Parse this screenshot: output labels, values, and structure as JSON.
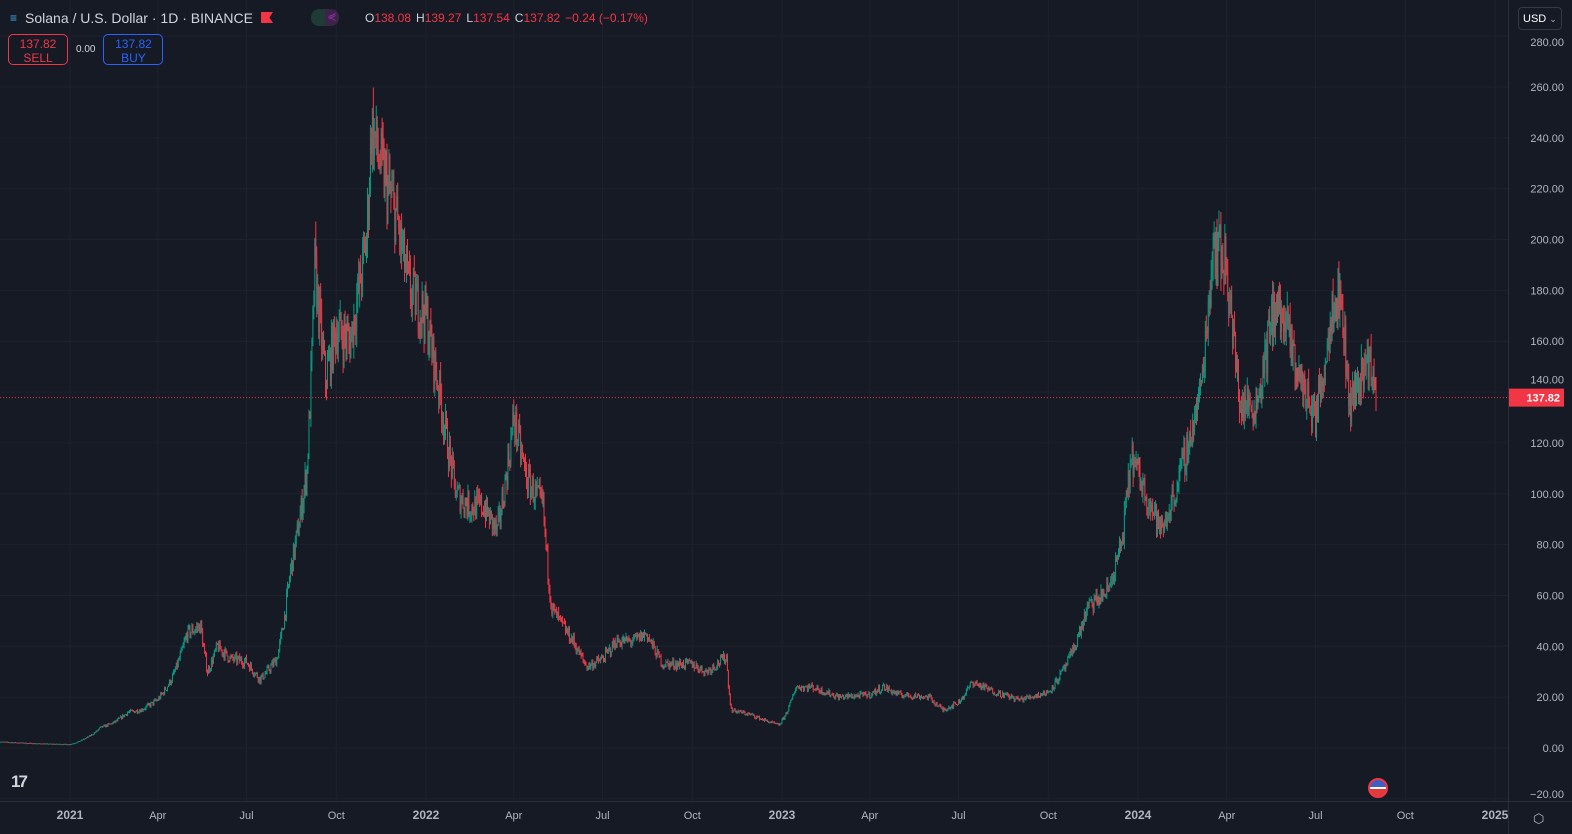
{
  "header": {
    "symbol": "Solana / U.S. Dollar · 1D · BINANCE",
    "o_label": "O",
    "o": "138.08",
    "h_label": "H",
    "h": "139.27",
    "l_label": "L",
    "l": "137.54",
    "c_label": "C",
    "c": "137.82",
    "change": "−0.24 (−0.17%)"
  },
  "trade": {
    "sell_price": "137.82",
    "sell_label": "SELL",
    "spread": "0.00",
    "buy_price": "137.82",
    "buy_label": "BUY"
  },
  "currency": "USD",
  "colors": {
    "up": "#089981",
    "down": "#f23645",
    "bg": "#161a25",
    "grid": "#1e222d",
    "text": "#b2b5be"
  },
  "chart_data": {
    "type": "candlestick",
    "title": "Solana / U.S. Dollar · 1D · BINANCE",
    "last_price": 137.82,
    "last_price_label": "137.82",
    "ylim": [
      -20,
      280
    ],
    "yticks": [
      "280.00",
      "260.00",
      "240.00",
      "220.00",
      "200.00",
      "180.00",
      "160.00",
      "140.00",
      "120.00",
      "100.00",
      "80.00",
      "60.00",
      "40.00",
      "20.00",
      "0.00",
      "−20.00"
    ],
    "ytick_values": [
      280,
      260,
      240,
      220,
      200,
      180,
      160,
      140,
      120,
      100,
      80,
      60,
      40,
      20,
      0,
      -20
    ],
    "xticks": [
      {
        "label": "2021",
        "date": "2021-01-01"
      },
      {
        "label": "Apr",
        "date": "2021-04-01"
      },
      {
        "label": "Jul",
        "date": "2021-07-01"
      },
      {
        "label": "Oct",
        "date": "2021-10-01"
      },
      {
        "label": "2022",
        "date": "2022-01-01"
      },
      {
        "label": "Apr",
        "date": "2022-04-01"
      },
      {
        "label": "Jul",
        "date": "2022-07-01"
      },
      {
        "label": "Oct",
        "date": "2022-10-01"
      },
      {
        "label": "2023",
        "date": "2023-01-01"
      },
      {
        "label": "Apr",
        "date": "2023-04-01"
      },
      {
        "label": "Jul",
        "date": "2023-07-01"
      },
      {
        "label": "Oct",
        "date": "2023-10-01"
      },
      {
        "label": "2024",
        "date": "2024-01-01"
      },
      {
        "label": "Apr",
        "date": "2024-04-01"
      },
      {
        "label": "Jul",
        "date": "2024-07-01"
      },
      {
        "label": "Oct",
        "date": "2024-10-01"
      },
      {
        "label": "2025",
        "date": "2025-01-01"
      }
    ],
    "xrange": [
      "2020-10-20",
      "2025-01-20"
    ],
    "close_keypoints": [
      [
        "2020-10-20",
        2.5
      ],
      [
        "2020-11-15",
        2
      ],
      [
        "2020-12-15",
        1.6
      ],
      [
        "2021-01-01",
        1.5
      ],
      [
        "2021-01-15",
        3.5
      ],
      [
        "2021-02-01",
        8
      ],
      [
        "2021-02-15",
        10
      ],
      [
        "2021-03-01",
        14
      ],
      [
        "2021-03-15",
        15
      ],
      [
        "2021-04-01",
        19
      ],
      [
        "2021-04-15",
        27
      ],
      [
        "2021-05-01",
        45
      ],
      [
        "2021-05-15",
        48
      ],
      [
        "2021-05-22",
        30
      ],
      [
        "2021-06-01",
        40
      ],
      [
        "2021-06-15",
        35
      ],
      [
        "2021-07-01",
        34
      ],
      [
        "2021-07-15",
        27
      ],
      [
        "2021-08-01",
        35
      ],
      [
        "2021-08-15",
        70
      ],
      [
        "2021-09-01",
        110
      ],
      [
        "2021-09-09",
        190
      ],
      [
        "2021-09-20",
        145
      ],
      [
        "2021-10-01",
        165
      ],
      [
        "2021-10-15",
        160
      ],
      [
        "2021-11-01",
        200
      ],
      [
        "2021-11-06",
        245
      ],
      [
        "2021-11-15",
        230
      ],
      [
        "2021-12-01",
        210
      ],
      [
        "2021-12-15",
        180
      ],
      [
        "2022-01-01",
        170
      ],
      [
        "2022-01-15",
        140
      ],
      [
        "2022-02-01",
        100
      ],
      [
        "2022-02-15",
        95
      ],
      [
        "2022-03-01",
        95
      ],
      [
        "2022-03-15",
        85
      ],
      [
        "2022-04-01",
        130
      ],
      [
        "2022-04-15",
        105
      ],
      [
        "2022-05-01",
        95
      ],
      [
        "2022-05-10",
        55
      ],
      [
        "2022-06-01",
        42
      ],
      [
        "2022-06-15",
        32
      ],
      [
        "2022-07-01",
        35
      ],
      [
        "2022-07-15",
        42
      ],
      [
        "2022-08-01",
        42
      ],
      [
        "2022-08-15",
        45
      ],
      [
        "2022-09-01",
        33
      ],
      [
        "2022-10-01",
        33
      ],
      [
        "2022-10-15",
        30
      ],
      [
        "2022-11-05",
        36
      ],
      [
        "2022-11-10",
        15
      ],
      [
        "2022-12-01",
        13
      ],
      [
        "2022-12-29",
        9
      ],
      [
        "2023-01-15",
        24
      ],
      [
        "2023-02-01",
        24
      ],
      [
        "2023-03-01",
        20
      ],
      [
        "2023-04-01",
        21
      ],
      [
        "2023-04-15",
        24
      ],
      [
        "2023-05-01",
        21
      ],
      [
        "2023-06-01",
        20
      ],
      [
        "2023-06-15",
        15
      ],
      [
        "2023-07-01",
        18
      ],
      [
        "2023-07-15",
        26
      ],
      [
        "2023-08-01",
        23
      ],
      [
        "2023-09-01",
        19
      ],
      [
        "2023-10-01",
        22
      ],
      [
        "2023-10-20",
        33
      ],
      [
        "2023-11-10",
        55
      ],
      [
        "2023-12-01",
        62
      ],
      [
        "2023-12-15",
        80
      ],
      [
        "2023-12-25",
        115
      ],
      [
        "2024-01-15",
        95
      ],
      [
        "2024-01-25",
        85
      ],
      [
        "2024-02-15",
        110
      ],
      [
        "2024-03-05",
        140
      ],
      [
        "2024-03-18",
        200
      ],
      [
        "2024-04-01",
        190
      ],
      [
        "2024-04-15",
        135
      ],
      [
        "2024-05-01",
        135
      ],
      [
        "2024-05-20",
        175
      ],
      [
        "2024-06-01",
        165
      ],
      [
        "2024-06-15",
        145
      ],
      [
        "2024-07-01",
        130
      ],
      [
        "2024-07-20",
        180
      ],
      [
        "2024-07-28",
        175
      ],
      [
        "2024-08-05",
        135
      ],
      [
        "2024-08-15",
        145
      ],
      [
        "2024-08-25",
        155
      ],
      [
        "2024-09-01",
        137.82
      ]
    ]
  }
}
